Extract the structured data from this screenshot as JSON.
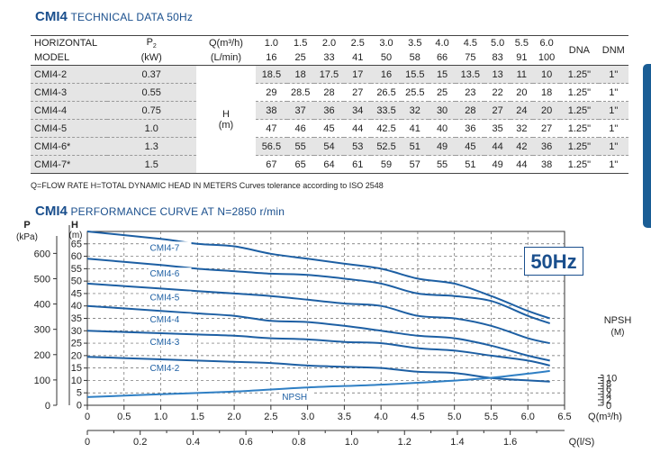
{
  "tech_section": {
    "model": "CMI4",
    "title": "TECHNICAL DATA 50Hz"
  },
  "table": {
    "header": {
      "col1": [
        "HORIZONTAL",
        "MODEL"
      ],
      "p2": [
        "P2",
        "(kW)"
      ],
      "q_label": [
        "Q(m³/h)",
        "(L/min)"
      ],
      "q_m3h": [
        "1.0",
        "1.5",
        "2.0",
        "2.5",
        "3.0",
        "3.5",
        "4.0",
        "4.5",
        "5.0",
        "5.5",
        "6.0"
      ],
      "q_lmin": [
        "16",
        "25",
        "33",
        "41",
        "50",
        "58",
        "66",
        "75",
        "83",
        "91",
        "100"
      ],
      "dna": "DNA",
      "dnm": "DNM"
    },
    "h_label": [
      "H",
      "(m)"
    ],
    "rows": [
      {
        "model": "CMI4-2",
        "p2": "0.37",
        "h": [
          "18.5",
          "18",
          "17.5",
          "17",
          "16",
          "15.5",
          "15",
          "13.5",
          "13",
          "11",
          "10"
        ],
        "dna": "1.25\"",
        "dnm": "1\""
      },
      {
        "model": "CMI4-3",
        "p2": "0.55",
        "h": [
          "29",
          "28.5",
          "28",
          "27",
          "26.5",
          "25.5",
          "25",
          "23",
          "22",
          "20",
          "18"
        ],
        "dna": "1.25\"",
        "dnm": "1\""
      },
      {
        "model": "CMI4-4",
        "p2": "0.75",
        "h": [
          "38",
          "37",
          "36",
          "34",
          "33.5",
          "32",
          "30",
          "28",
          "27",
          "24",
          "20"
        ],
        "dna": "1.25\"",
        "dnm": "1\""
      },
      {
        "model": "CMI4-5",
        "p2": "1.0",
        "h": [
          "47",
          "46",
          "45",
          "44",
          "42.5",
          "41",
          "40",
          "36",
          "35",
          "32",
          "27"
        ],
        "dna": "1.25\"",
        "dnm": "1\""
      },
      {
        "model": "CMI4-6*",
        "p2": "1.3",
        "h": [
          "56.5",
          "55",
          "54",
          "53",
          "52.5",
          "51",
          "49",
          "45",
          "44",
          "42",
          "36"
        ],
        "dna": "1.25\"",
        "dnm": "1\""
      },
      {
        "model": "CMI4-7*",
        "p2": "1.5",
        "h": [
          "67",
          "65",
          "64",
          "61",
          "59",
          "57",
          "55",
          "51",
          "49",
          "44",
          "38"
        ],
        "dna": "1.25\"",
        "dnm": "1\""
      }
    ],
    "footnote": "Q=FLOW RATE H=TOTAL DYNAMIC HEAD IN METERS Curves tolerance according to ISO 2548"
  },
  "curve_section": {
    "model": "CMI4",
    "title": "PERFORMANCE CURVE AT N=2850 r/min"
  },
  "badge": "50Hz",
  "colors": {
    "accent": "#1a4f8d",
    "curve": "#1d5fa3",
    "npsh_curve": "#2f7fc4",
    "shade": "#e5e5e5"
  },
  "chart_data": {
    "type": "line",
    "x_label": "Q(m³/h)",
    "x2_label": "Q(l/S)",
    "y_left_label": [
      "H",
      "(m)"
    ],
    "y_left2_label": [
      "P",
      "(kPa)"
    ],
    "y_right_label": [
      "NPSH",
      "(M)"
    ],
    "xlim": [
      0,
      6.5
    ],
    "ylim": [
      0,
      70
    ],
    "x_ticks": [
      "0",
      "0.5",
      "1.0",
      "1.5",
      "2.0",
      "2.5",
      "3.0",
      "3.5",
      "4.0",
      "4.5",
      "5.0",
      "5.5",
      "6.0",
      "6.5"
    ],
    "x2_ticks": [
      "0",
      "0.2",
      "0.4",
      "0.6",
      "0.8",
      "1.0",
      "1.2",
      "1.4",
      "1.6"
    ],
    "y_ticks": [
      "0",
      "5",
      "10",
      "15",
      "20",
      "25",
      "30",
      "35",
      "40",
      "45",
      "50",
      "55",
      "60",
      "65"
    ],
    "kpa_ticks": [
      "0",
      "100",
      "200",
      "300",
      "400",
      "500",
      "600"
    ],
    "npsh_ticks": [
      "0",
      "2",
      "4",
      "6",
      "8",
      "10"
    ],
    "grid": true,
    "series": [
      {
        "name": "CMI4-7",
        "x": [
          0,
          1.0,
          1.5,
          2.0,
          2.5,
          3.0,
          3.5,
          4.0,
          4.5,
          5.0,
          5.5,
          6.0,
          6.3
        ],
        "y": [
          70,
          67,
          65,
          64,
          61,
          59,
          57,
          55,
          51,
          49,
          44,
          38,
          35
        ]
      },
      {
        "name": "CMI4-6",
        "x": [
          0,
          1.0,
          1.5,
          2.0,
          2.5,
          3.0,
          3.5,
          4.0,
          4.5,
          5.0,
          5.5,
          6.0,
          6.3
        ],
        "y": [
          59,
          56.5,
          55,
          54,
          53,
          52.5,
          51,
          49,
          45,
          44,
          42,
          36,
          33
        ]
      },
      {
        "name": "CMI4-5",
        "x": [
          0,
          1.0,
          1.5,
          2.0,
          2.5,
          3.0,
          3.5,
          4.0,
          4.5,
          5.0,
          5.5,
          6.0,
          6.3
        ],
        "y": [
          49,
          47,
          46,
          45,
          44,
          42.5,
          41,
          40,
          36,
          35,
          32,
          27,
          25
        ]
      },
      {
        "name": "CMI4-4",
        "x": [
          0,
          1.0,
          1.5,
          2.0,
          2.5,
          3.0,
          3.5,
          4.0,
          4.5,
          5.0,
          5.5,
          6.0,
          6.3
        ],
        "y": [
          40,
          38,
          37,
          36,
          34,
          33.5,
          32,
          30,
          28,
          27,
          24,
          20,
          18
        ]
      },
      {
        "name": "CMI4-3",
        "x": [
          0,
          1.0,
          1.5,
          2.0,
          2.5,
          3.0,
          3.5,
          4.0,
          4.5,
          5.0,
          5.5,
          6.0,
          6.3
        ],
        "y": [
          30,
          29,
          28.5,
          28,
          27,
          26.5,
          25.5,
          25,
          23,
          22,
          20,
          18,
          16
        ]
      },
      {
        "name": "CMI4-2",
        "x": [
          0,
          1.0,
          1.5,
          2.0,
          2.5,
          3.0,
          3.5,
          4.0,
          4.5,
          5.0,
          5.5,
          6.0,
          6.3
        ],
        "y": [
          19.5,
          18.5,
          18,
          17.5,
          17,
          16,
          15.5,
          15,
          13.5,
          13,
          11,
          10,
          9.5
        ]
      },
      {
        "name": "NPSH",
        "x": [
          0,
          1.0,
          2.0,
          3.0,
          4.0,
          5.0,
          5.5,
          6.0,
          6.3
        ],
        "y": [
          3,
          4,
          5,
          6.5,
          7.5,
          9,
          10,
          11.5,
          12.5
        ]
      }
    ]
  }
}
